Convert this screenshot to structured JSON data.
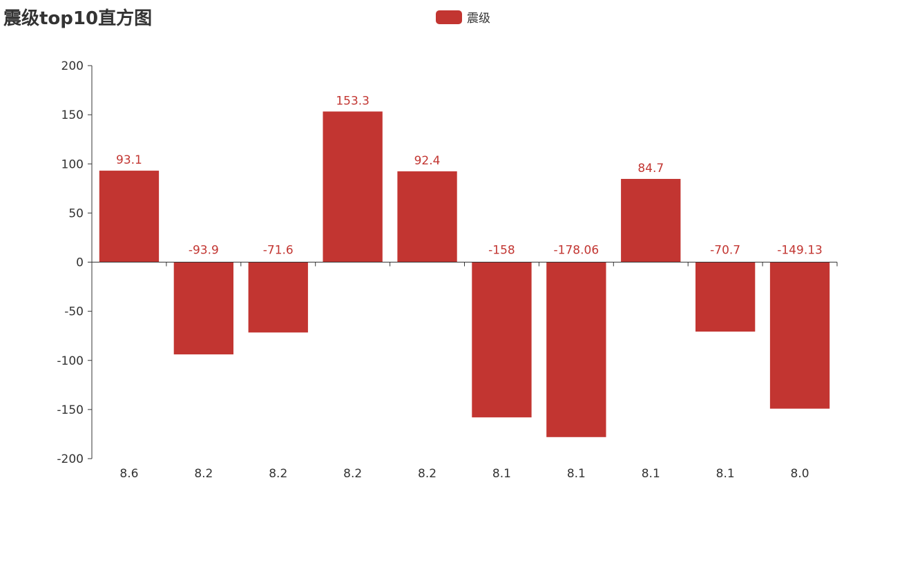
{
  "chart_data": {
    "type": "bar",
    "title": "震级top10直方图",
    "legend": {
      "label": "震级",
      "position": "top-center"
    },
    "categories": [
      "8.6",
      "8.2",
      "8.2",
      "8.2",
      "8.2",
      "8.1",
      "8.1",
      "8.1",
      "8.1",
      "8.0"
    ],
    "series": [
      {
        "name": "震级",
        "values": [
          93.1,
          -93.9,
          -71.6,
          153.3,
          92.4,
          -158,
          -178.06,
          84.7,
          -70.7,
          -149.13
        ],
        "labels": [
          "93.1",
          "-93.9",
          "-71.6",
          "153.3",
          "92.4",
          "-158",
          "-178.06",
          "84.7",
          "-70.7",
          "-149.13"
        ]
      }
    ],
    "ylim": [
      -200,
      200
    ],
    "yticks": [
      200,
      150,
      100,
      50,
      0,
      -50,
      -100,
      -150,
      -200
    ],
    "xlabel": "",
    "ylabel": "",
    "grid": false
  },
  "colors": {
    "bar": "#c23531",
    "axis": "#333333",
    "text": "#333333"
  }
}
